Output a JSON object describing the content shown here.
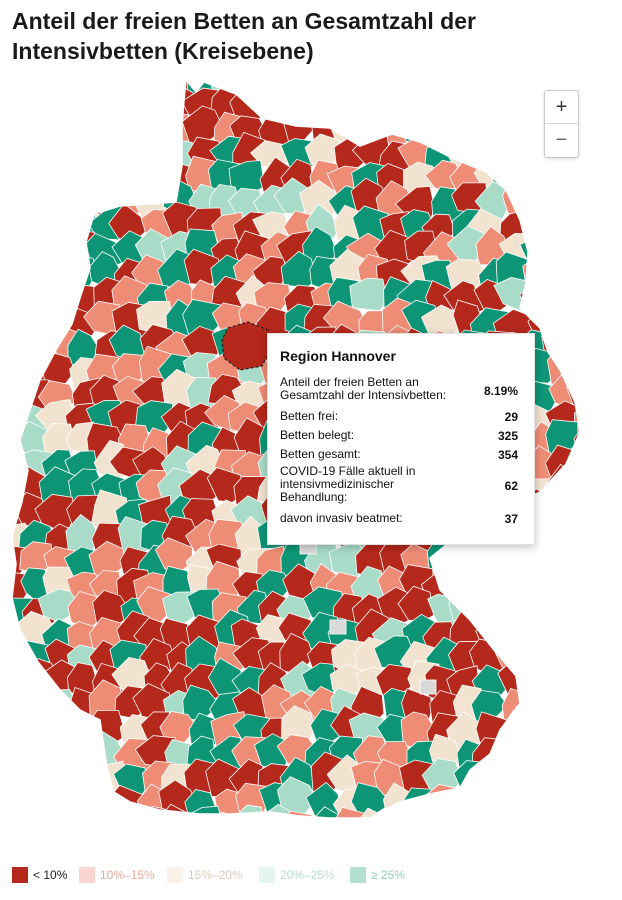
{
  "title": "Anteil der freien Betten an Gesamtzahl der Intensivbetten (Kreisebene)",
  "zoom": {
    "in_label": "+",
    "out_label": "−"
  },
  "tooltip": {
    "region": "Region Hannover",
    "rows": [
      {
        "label": "Anteil der freien Betten an Gesamtzahl der Intensivbetten:",
        "value": "8.19%"
      },
      {
        "label": "Betten frei:",
        "value": "29"
      },
      {
        "label": "Betten belegt:",
        "value": "325"
      },
      {
        "label": "Betten gesamt:",
        "value": "354"
      },
      {
        "label": "COVID-19 Fälle aktuell in intensivmedizinischer Behandlung:",
        "value": "62"
      },
      {
        "label": "davon invasiv beatmet:",
        "value": "37"
      }
    ]
  },
  "legend": [
    {
      "label": "< 10%",
      "color": "#b5281c",
      "text_color": "#222222"
    },
    {
      "label": "10%–15%",
      "color": "#f8d6cf",
      "text_color": "#e9a89c"
    },
    {
      "label": "15%–20%",
      "color": "#faf1e8",
      "text_color": "#d9cbbb"
    },
    {
      "label": "20%–25%",
      "color": "#e4f4ee",
      "text_color": "#b7dccf"
    },
    {
      "label": "≥ 25%",
      "color": "#b3e0d1",
      "text_color": "#8fcdb9"
    }
  ],
  "map_colors": {
    "lt10": "#b5281c",
    "p10_15": "#ef8c75",
    "p15_20": "#f2e2d0",
    "p20_25": "#a9dcc8",
    "ge25": "#0e9576",
    "no_data": "#d9d9d9"
  }
}
